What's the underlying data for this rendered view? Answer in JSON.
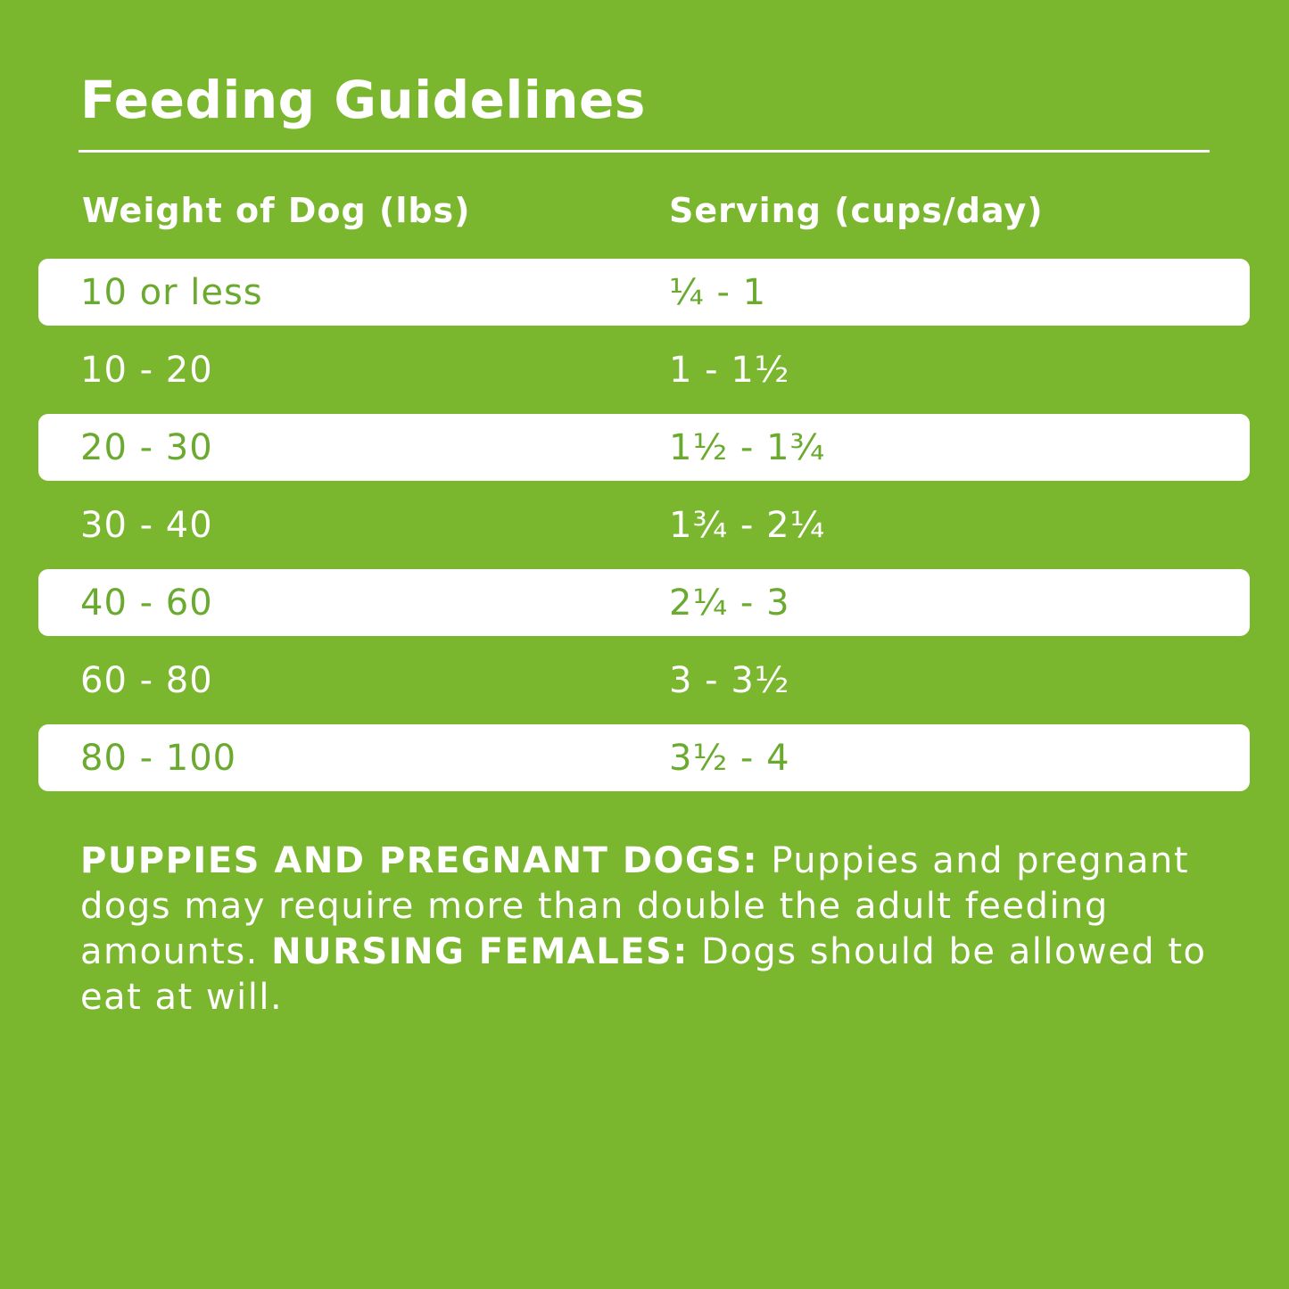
{
  "title": "Feeding Guidelines",
  "colors": {
    "background": "#7ab72f",
    "row_highlight": "#ffffff",
    "highlight_text": "#6aab2f"
  },
  "table": {
    "headers": [
      "Weight of Dog (lbs)",
      "Serving (cups/day)"
    ],
    "rows": [
      {
        "weight": "10 or less",
        "serving": "¼ - 1"
      },
      {
        "weight": "10 - 20",
        "serving": "1 - 1½"
      },
      {
        "weight": "20 - 30",
        "serving": "1½ - 1¾"
      },
      {
        "weight": "30 - 40",
        "serving": "1¾ - 2¼"
      },
      {
        "weight": "40 - 60",
        "serving": "2¼ - 3"
      },
      {
        "weight": "60 - 80",
        "serving": "3 - 3½"
      },
      {
        "weight": "80 - 100",
        "serving": "3½ - 4"
      }
    ]
  },
  "notes": {
    "puppies_label": "PUPPIES AND PREGNANT DOGS:",
    "puppies_text": " Puppies and pregnant dogs may require more than double the adult feeding amounts. ",
    "nursing_label": "NURSING FEMALES:",
    "nursing_text": " Dogs should be allowed to eat at will."
  }
}
